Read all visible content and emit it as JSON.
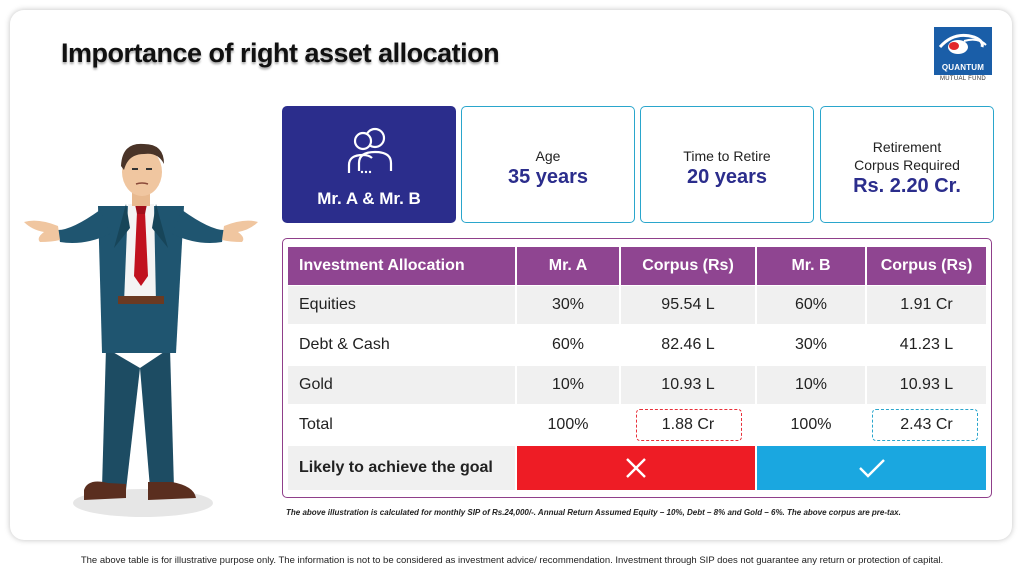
{
  "title": "Importance of right asset allocation",
  "logo": {
    "name": "QUANTUM",
    "sub": "MUTUAL FUND"
  },
  "cards": {
    "main_label": "Mr. A & Mr. B",
    "age": {
      "label": "Age",
      "value": "35 years"
    },
    "time_to_retire": {
      "label": "Time to Retire",
      "value": "20 years"
    },
    "corpus": {
      "label_line1": "Retirement",
      "label_line2": "Corpus Required",
      "value": "Rs. 2.20 Cr."
    }
  },
  "table": {
    "headers": [
      "Investment Allocation",
      "Mr. A",
      "Corpus (Rs)",
      "Mr. B",
      "Corpus (Rs)"
    ],
    "rows": [
      [
        "Equities",
        "30%",
        "95.54 L",
        "60%",
        "1.91 Cr"
      ],
      [
        "Debt & Cash",
        "60%",
        "82.46 L",
        "30%",
        "41.23 L"
      ],
      [
        "Gold",
        "10%",
        "10.93 L",
        "10%",
        "10.93 L"
      ],
      [
        "Total",
        "100%",
        "1.88 Cr",
        "100%",
        "2.43 Cr"
      ]
    ],
    "goal_label": "Likely to achieve the goal",
    "goal_a_icon": "cross-icon",
    "goal_b_icon": "check-icon"
  },
  "note": "The above illustration is calculated for monthly SIP of Rs.24,000/-. Annual Return Assumed  Equity – 10%, Debt – 8% and Gold – 6%. The above corpus are pre-tax.",
  "disclaimer": "The above table is for illustrative purpose only. The information is not to be considered as investment advice/ recommendation. Investment through SIP does not guarantee any return or protection of capital.",
  "colors": {
    "navy": "#2b2d8c",
    "purple": "#8f4591",
    "red": "#ee1c25",
    "blue": "#1aa7e0",
    "teal": "#2aa6cc"
  }
}
